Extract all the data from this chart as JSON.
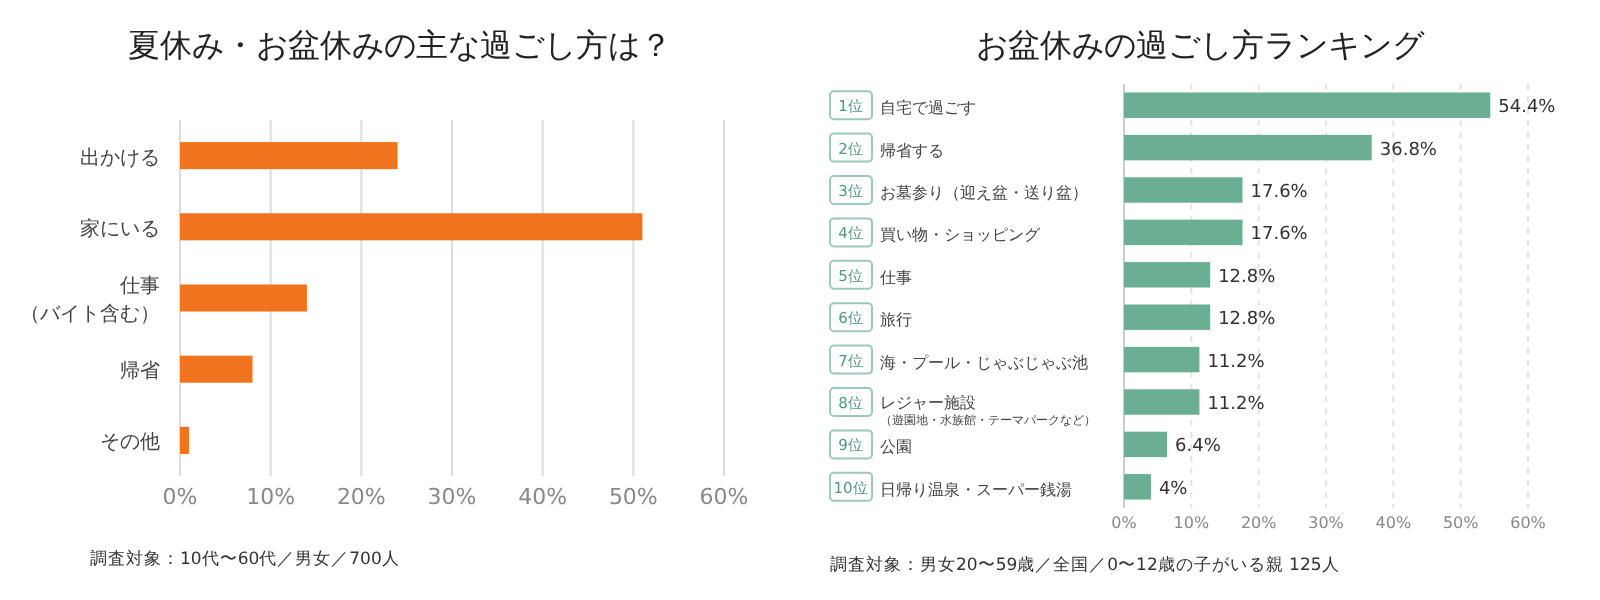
{
  "chart_data": [
    {
      "type": "bar",
      "orientation": "horizontal",
      "title": "夏休み・お盆休みの主な過ごし方は？",
      "categories": [
        "出かける",
        "家にいる",
        "仕事（バイト含む）",
        "帰省",
        "その他"
      ],
      "values": [
        24,
        51,
        14,
        8,
        1
      ],
      "color": "#f0741e",
      "xlim": [
        0,
        60
      ],
      "xticks": [
        {
          "value": 0,
          "label": "0%"
        },
        {
          "value": 10,
          "label": "10%"
        },
        {
          "value": 20,
          "label": "20%"
        },
        {
          "value": 30,
          "label": "30%"
        },
        {
          "value": 40,
          "label": "40%"
        },
        {
          "value": 50,
          "label": "50%"
        },
        {
          "value": 60,
          "label": "60%"
        }
      ],
      "grid": "x",
      "annotations": [
        "調査対象：10代〜60代／男女／700人"
      ]
    },
    {
      "type": "bar",
      "orientation": "horizontal",
      "title": "お盆休みの過ごし方ランキング",
      "categories": [
        "1位 自宅で過ごす",
        "2位 帰省する",
        "3位 お墓参り（迎え盆・送り盆）",
        "4位 買い物・ショッピング",
        "5位 仕事",
        "6位 旅行",
        "7位 海・プール・じゃぶじゃぶ池",
        "8位 レジャー施設（遊園地・水族館・テーマパークなど）",
        "9位 公園",
        "10位 日帰り温泉・スーパー銭湯"
      ],
      "values": [
        54.4,
        36.8,
        17.6,
        17.6,
        12.8,
        12.8,
        11.2,
        11.2,
        6.4,
        4
      ],
      "value_labels": [
        "54.4%",
        "36.8%",
        "17.6%",
        "17.6%",
        "12.8%",
        "12.8%",
        "11.2%",
        "11.2%",
        "6.4%",
        "4%"
      ],
      "color": "#6aae94",
      "xlim": [
        0,
        60
      ],
      "xticks": [
        {
          "value": 0,
          "label": "0%"
        },
        {
          "value": 10,
          "label": "10%"
        },
        {
          "value": 20,
          "label": "20%"
        },
        {
          "value": 30,
          "label": "30%"
        },
        {
          "value": 40,
          "label": "40%"
        },
        {
          "value": 50,
          "label": "50%"
        },
        {
          "value": 60,
          "label": "60%"
        }
      ],
      "grid": "x",
      "annotations": [
        "調査対象：男女20〜59歳／全国／0〜12歳の子がいる親 125人"
      ]
    }
  ]
}
